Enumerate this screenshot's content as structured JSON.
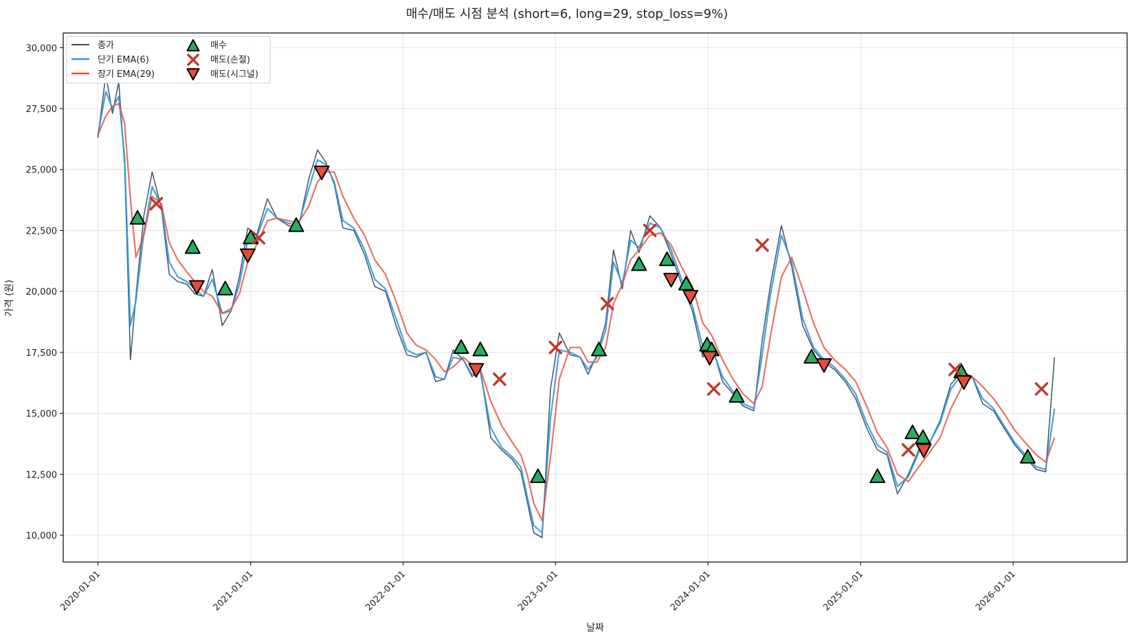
{
  "chart_data": {
    "type": "line",
    "title": "매수/매도 시점 분석 (short=6, long=29, stop_loss=9%)",
    "xlabel": "날짜",
    "ylabel": "가격 (원)",
    "x_range": [
      "2019-10-10",
      "2026-10-01"
    ],
    "ylim": [
      8900,
      30600
    ],
    "grid": true,
    "legend_location": "top-left",
    "x_ticks": [
      {
        "date": "2020-01-01",
        "label": "2020-01-01"
      },
      {
        "date": "2021-01-01",
        "label": "2021-01-01"
      },
      {
        "date": "2022-01-01",
        "label": "2022-01-01"
      },
      {
        "date": "2023-01-01",
        "label": "2023-01-01"
      },
      {
        "date": "2024-01-01",
        "label": "2024-01-01"
      },
      {
        "date": "2025-01-01",
        "label": "2025-01-01"
      },
      {
        "date": "2026-01-01",
        "label": "2026-01-01"
      }
    ],
    "y_ticks": [
      {
        "value": 10000,
        "label": "10,000"
      },
      {
        "value": 12500,
        "label": "12,500"
      },
      {
        "value": 15000,
        "label": "15,000"
      },
      {
        "value": 17500,
        "label": "17,500"
      },
      {
        "value": 20000,
        "label": "20,000"
      },
      {
        "value": 22500,
        "label": "22,500"
      },
      {
        "value": 25000,
        "label": "25,000"
      },
      {
        "value": 27500,
        "label": "27,500"
      },
      {
        "value": 30000,
        "label": "30,000"
      }
    ],
    "series": [
      {
        "name": "종가",
        "color": "#34495e",
        "dates": [
          "2020-01-01",
          "2020-01-20",
          "2020-02-05",
          "2020-02-20",
          "2020-03-05",
          "2020-03-19",
          "2020-04-01",
          "2020-04-20",
          "2020-05-10",
          "2020-06-01",
          "2020-06-20",
          "2020-07-10",
          "2020-08-01",
          "2020-08-20",
          "2020-09-10",
          "2020-10-01",
          "2020-10-25",
          "2020-11-15",
          "2020-12-05",
          "2020-12-25",
          "2021-01-15",
          "2021-02-10",
          "2021-03-05",
          "2021-04-01",
          "2021-04-25",
          "2021-05-20",
          "2021-06-10",
          "2021-06-30",
          "2021-07-20",
          "2021-08-10",
          "2021-09-05",
          "2021-10-01",
          "2021-10-25",
          "2021-11-20",
          "2021-12-15",
          "2022-01-10",
          "2022-02-01",
          "2022-02-25",
          "2022-03-20",
          "2022-04-10",
          "2022-05-01",
          "2022-05-25",
          "2022-06-15",
          "2022-07-05",
          "2022-07-30",
          "2022-08-25",
          "2022-09-20",
          "2022-10-10",
          "2022-10-25",
          "2022-11-10",
          "2022-11-30",
          "2022-12-20",
          "2023-01-10",
          "2023-02-05",
          "2023-03-01",
          "2023-03-20",
          "2023-04-10",
          "2023-05-01",
          "2023-05-20",
          "2023-06-10",
          "2023-06-30",
          "2023-07-20",
          "2023-08-15",
          "2023-09-10",
          "2023-10-05",
          "2023-10-30",
          "2023-11-25",
          "2023-12-20",
          "2024-01-10",
          "2024-02-05",
          "2024-03-01",
          "2024-03-25",
          "2024-04-20",
          "2024-05-10",
          "2024-05-30",
          "2024-06-25",
          "2024-07-20",
          "2024-08-15",
          "2024-09-10",
          "2024-10-05",
          "2024-10-30",
          "2024-11-25",
          "2024-12-20",
          "2025-01-15",
          "2025-02-10",
          "2025-03-05",
          "2025-03-30",
          "2025-04-25",
          "2025-05-20",
          "2025-06-15",
          "2025-07-10",
          "2025-08-05",
          "2025-09-01",
          "2025-09-25",
          "2025-10-20",
          "2025-11-15",
          "2025-12-10",
          "2026-01-05",
          "2026-01-30",
          "2026-02-25",
          "2026-03-20",
          "2026-04-10"
        ],
        "values": [
          26300,
          28900,
          27300,
          28600,
          25200,
          17200,
          19800,
          23100,
          24900,
          23400,
          20700,
          20400,
          20300,
          19900,
          19800,
          20900,
          18600,
          19200,
          20600,
          22600,
          22300,
          23800,
          23000,
          22700,
          22600,
          24600,
          25800,
          25300,
          24400,
          22600,
          22500,
          21500,
          20200,
          20000,
          18600,
          17400,
          17300,
          17500,
          16300,
          16400,
          17600,
          17200,
          16500,
          16800,
          14000,
          13500,
          13100,
          12600,
          11400,
          10100,
          9900,
          16000,
          18300,
          17400,
          17300,
          16600,
          17400,
          18700,
          21700,
          20100,
          22500,
          21600,
          23100,
          22600,
          21500,
          20300,
          19200,
          17300,
          17800,
          16300,
          15800,
          15300,
          15100,
          18000,
          20300,
          22700,
          21000,
          18600,
          17600,
          17100,
          16800,
          16300,
          15600,
          14400,
          13500,
          13300,
          11700,
          12500,
          13500,
          13800,
          14700,
          16200,
          16700,
          16500,
          15400,
          15100,
          14400,
          13700,
          13200,
          12700,
          12600,
          17300
        ]
      },
      {
        "name": "단기 EMA(6)",
        "color": "#3498db",
        "dates": [
          "2020-01-01",
          "2020-01-20",
          "2020-02-05",
          "2020-02-20",
          "2020-03-05",
          "2020-03-19",
          "2020-04-01",
          "2020-04-20",
          "2020-05-10",
          "2020-06-01",
          "2020-06-20",
          "2020-07-10",
          "2020-08-01",
          "2020-08-20",
          "2020-09-10",
          "2020-10-01",
          "2020-10-25",
          "2020-11-15",
          "2020-12-05",
          "2020-12-25",
          "2021-01-15",
          "2021-02-10",
          "2021-03-05",
          "2021-04-01",
          "2021-04-25",
          "2021-05-20",
          "2021-06-10",
          "2021-06-30",
          "2021-07-20",
          "2021-08-10",
          "2021-09-05",
          "2021-10-01",
          "2021-10-25",
          "2021-11-20",
          "2021-12-15",
          "2022-01-10",
          "2022-02-01",
          "2022-02-25",
          "2022-03-20",
          "2022-04-10",
          "2022-05-01",
          "2022-05-25",
          "2022-06-15",
          "2022-07-05",
          "2022-07-30",
          "2022-08-25",
          "2022-09-20",
          "2022-10-10",
          "2022-10-25",
          "2022-11-10",
          "2022-11-30",
          "2022-12-20",
          "2023-01-10",
          "2023-02-05",
          "2023-03-01",
          "2023-03-20",
          "2023-04-10",
          "2023-05-01",
          "2023-05-20",
          "2023-06-10",
          "2023-06-30",
          "2023-07-20",
          "2023-08-15",
          "2023-09-10",
          "2023-10-05",
          "2023-10-30",
          "2023-11-25",
          "2023-12-20",
          "2024-01-10",
          "2024-02-05",
          "2024-03-01",
          "2024-03-25",
          "2024-04-20",
          "2024-05-10",
          "2024-05-30",
          "2024-06-25",
          "2024-07-20",
          "2024-08-15",
          "2024-09-10",
          "2024-10-05",
          "2024-10-30",
          "2024-11-25",
          "2024-12-20",
          "2025-01-15",
          "2025-02-10",
          "2025-03-05",
          "2025-03-30",
          "2025-04-25",
          "2025-05-20",
          "2025-06-15",
          "2025-07-10",
          "2025-08-05",
          "2025-09-01",
          "2025-09-25",
          "2025-10-20",
          "2025-11-15",
          "2025-12-10",
          "2026-01-05",
          "2026-01-30",
          "2026-02-25",
          "2026-03-20",
          "2026-04-10"
        ],
        "values": [
          26400,
          28200,
          27500,
          28000,
          25500,
          18600,
          19600,
          22400,
          24300,
          23500,
          21200,
          20600,
          20400,
          20100,
          19800,
          20500,
          19100,
          19200,
          20300,
          22100,
          22200,
          23400,
          23000,
          22800,
          22700,
          24200,
          25400,
          25200,
          24500,
          22900,
          22600,
          21700,
          20500,
          20100,
          18900,
          17600,
          17400,
          17500,
          16500,
          16400,
          17300,
          17200,
          16600,
          16700,
          14400,
          13600,
          13200,
          12800,
          11600,
          10400,
          10100,
          14800,
          17600,
          17500,
          17300,
          16800,
          17300,
          18400,
          21200,
          20300,
          22100,
          21800,
          22800,
          22600,
          21700,
          20500,
          19400,
          17700,
          17700,
          16500,
          15900,
          15400,
          15200,
          17400,
          19900,
          22300,
          21200,
          18900,
          17700,
          17200,
          16900,
          16400,
          15800,
          14600,
          13700,
          13400,
          12000,
          12400,
          13400,
          13800,
          14600,
          16000,
          16600,
          16500,
          15600,
          15200,
          14500,
          13800,
          13300,
          12800,
          12700,
          15200
        ]
      },
      {
        "name": "장기 EMA(29)",
        "color": "#e74c3c",
        "dates": [
          "2020-01-01",
          "2020-01-20",
          "2020-02-05",
          "2020-02-20",
          "2020-03-05",
          "2020-03-19",
          "2020-04-01",
          "2020-04-20",
          "2020-05-10",
          "2020-06-01",
          "2020-06-20",
          "2020-07-10",
          "2020-08-01",
          "2020-08-20",
          "2020-09-10",
          "2020-10-01",
          "2020-10-25",
          "2020-11-15",
          "2020-12-05",
          "2020-12-25",
          "2021-01-15",
          "2021-02-10",
          "2021-03-05",
          "2021-04-01",
          "2021-04-25",
          "2021-05-20",
          "2021-06-10",
          "2021-06-30",
          "2021-07-20",
          "2021-08-10",
          "2021-09-05",
          "2021-10-01",
          "2021-10-25",
          "2021-11-20",
          "2021-12-15",
          "2022-01-10",
          "2022-02-01",
          "2022-02-25",
          "2022-03-20",
          "2022-04-10",
          "2022-05-01",
          "2022-05-25",
          "2022-06-15",
          "2022-07-05",
          "2022-07-30",
          "2022-08-25",
          "2022-09-20",
          "2022-10-10",
          "2022-10-25",
          "2022-11-10",
          "2022-11-30",
          "2022-12-20",
          "2023-01-10",
          "2023-02-05",
          "2023-03-01",
          "2023-03-20",
          "2023-04-10",
          "2023-05-01",
          "2023-05-20",
          "2023-06-10",
          "2023-06-30",
          "2023-07-20",
          "2023-08-15",
          "2023-09-10",
          "2023-10-05",
          "2023-10-30",
          "2023-11-25",
          "2023-12-20",
          "2024-01-10",
          "2024-02-05",
          "2024-03-01",
          "2024-03-25",
          "2024-04-20",
          "2024-05-10",
          "2024-05-30",
          "2024-06-25",
          "2024-07-20",
          "2024-08-15",
          "2024-09-10",
          "2024-10-05",
          "2024-10-30",
          "2024-11-25",
          "2024-12-20",
          "2025-01-15",
          "2025-02-10",
          "2025-03-05",
          "2025-03-30",
          "2025-04-25",
          "2025-05-20",
          "2025-06-15",
          "2025-07-10",
          "2025-08-05",
          "2025-09-01",
          "2025-09-25",
          "2025-10-20",
          "2025-11-15",
          "2025-12-10",
          "2026-01-05",
          "2026-01-30",
          "2026-02-25",
          "2026-03-20",
          "2026-04-10"
        ],
        "values": [
          26400,
          27200,
          27600,
          27700,
          26900,
          23800,
          21400,
          22300,
          23900,
          23600,
          22000,
          21300,
          20800,
          20400,
          20000,
          19800,
          19100,
          19300,
          19900,
          21200,
          21900,
          22900,
          23000,
          22900,
          22800,
          23500,
          24500,
          24900,
          24900,
          23900,
          23000,
          22300,
          21300,
          20700,
          19600,
          18300,
          17800,
          17600,
          17200,
          16700,
          16900,
          17300,
          17000,
          16800,
          15500,
          14500,
          13800,
          13300,
          12500,
          11300,
          10600,
          13200,
          16400,
          17700,
          17700,
          17100,
          17100,
          17700,
          19500,
          20300,
          21300,
          21700,
          22300,
          22400,
          21900,
          21000,
          20200,
          18700,
          18200,
          17200,
          16400,
          15800,
          15400,
          16100,
          18200,
          20600,
          21400,
          20100,
          18700,
          17700,
          17200,
          16800,
          16300,
          15300,
          14200,
          13600,
          12500,
          12200,
          12800,
          13400,
          14000,
          15200,
          16100,
          16500,
          16100,
          15600,
          15000,
          14300,
          13800,
          13300,
          13000,
          14000
        ]
      }
    ],
    "buy_markers": {
      "name": "매수",
      "color": "#27ae60",
      "points": [
        {
          "date": "2020-04-05",
          "price": 23000
        },
        {
          "date": "2020-08-15",
          "price": 21800
        },
        {
          "date": "2020-11-01",
          "price": 20100
        },
        {
          "date": "2021-01-01",
          "price": 22200
        },
        {
          "date": "2021-04-20",
          "price": 22700
        },
        {
          "date": "2022-05-20",
          "price": 17700
        },
        {
          "date": "2022-07-05",
          "price": 17600
        },
        {
          "date": "2022-11-20",
          "price": 12400
        },
        {
          "date": "2023-04-15",
          "price": 17600
        },
        {
          "date": "2023-07-20",
          "price": 21100
        },
        {
          "date": "2023-09-25",
          "price": 21300
        },
        {
          "date": "2023-11-10",
          "price": 20300
        },
        {
          "date": "2023-12-30",
          "price": 17800
        },
        {
          "date": "2024-01-10",
          "price": 17600
        },
        {
          "date": "2024-03-10",
          "price": 15700
        },
        {
          "date": "2024-09-05",
          "price": 17300
        },
        {
          "date": "2025-02-10",
          "price": 12400
        },
        {
          "date": "2025-05-05",
          "price": 14200
        },
        {
          "date": "2025-05-30",
          "price": 14000
        },
        {
          "date": "2025-08-30",
          "price": 16700
        },
        {
          "date": "2026-02-05",
          "price": 13200
        }
      ]
    },
    "sell_stop_markers": {
      "name": "매도(손절)",
      "color": "#c0392b",
      "points": [
        {
          "date": "2020-05-20",
          "price": 23600
        },
        {
          "date": "2021-01-20",
          "price": 22200
        },
        {
          "date": "2022-08-20",
          "price": 16400
        },
        {
          "date": "2023-01-01",
          "price": 17700
        },
        {
          "date": "2023-05-05",
          "price": 19500
        },
        {
          "date": "2023-08-15",
          "price": 22500
        },
        {
          "date": "2024-01-15",
          "price": 16000
        },
        {
          "date": "2024-05-10",
          "price": 21900
        },
        {
          "date": "2025-04-25",
          "price": 13500
        },
        {
          "date": "2025-08-15",
          "price": 16800
        },
        {
          "date": "2026-03-10",
          "price": 16000
        }
      ]
    },
    "sell_signal_markers": {
      "name": "매도(시그널)",
      "color": "#e74c3c",
      "points": [
        {
          "date": "2020-08-25",
          "price": 20200
        },
        {
          "date": "2020-12-25",
          "price": 21500
        },
        {
          "date": "2021-06-20",
          "price": 24900
        },
        {
          "date": "2022-06-25",
          "price": 16800
        },
        {
          "date": "2023-10-05",
          "price": 20500
        },
        {
          "date": "2023-11-20",
          "price": 19800
        },
        {
          "date": "2024-01-05",
          "price": 17300
        },
        {
          "date": "2024-10-05",
          "price": 17000
        },
        {
          "date": "2025-06-01",
          "price": 13500
        },
        {
          "date": "2025-09-05",
          "price": 16300
        }
      ]
    }
  }
}
